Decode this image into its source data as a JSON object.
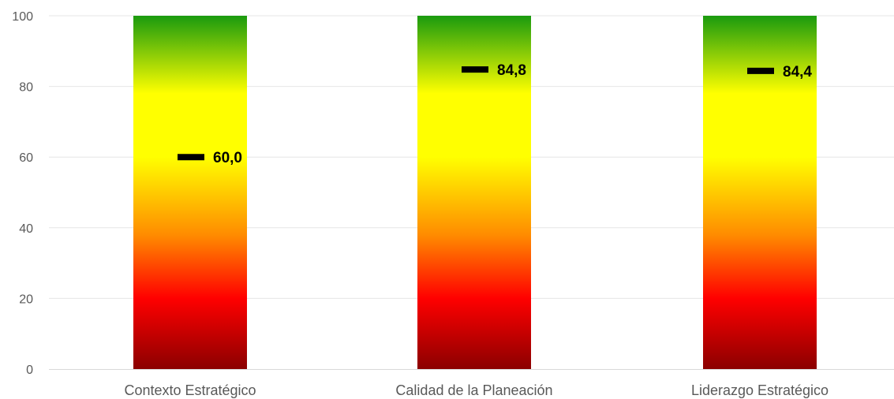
{
  "chart_data": {
    "type": "bar",
    "categories": [
      "Contexto Estratégico",
      "Calidad de la Planeación",
      "Liderazgo Estratégico"
    ],
    "series": [
      {
        "values": [
          100,
          100,
          100
        ]
      }
    ],
    "markers": [
      60.0,
      84.8,
      84.4
    ],
    "data_labels": [
      "60,0",
      "84,8",
      "84,4"
    ],
    "y_ticks": [
      "0",
      "20",
      "40",
      "60",
      "80",
      "100"
    ],
    "ylim": [
      0,
      100
    ],
    "grid": true,
    "title": "",
    "xlabel": "",
    "ylabel": "",
    "colors": {
      "gradient_top": "#1a9a0e",
      "gradient_yellow": "#ffff00",
      "gradient_orange": "#ff8c00",
      "gradient_red": "#ff0000",
      "gradient_bottom": "#8b0000",
      "marker": "#000000",
      "grid": "#e6e6e6",
      "axis": "#d9d9d9"
    }
  }
}
